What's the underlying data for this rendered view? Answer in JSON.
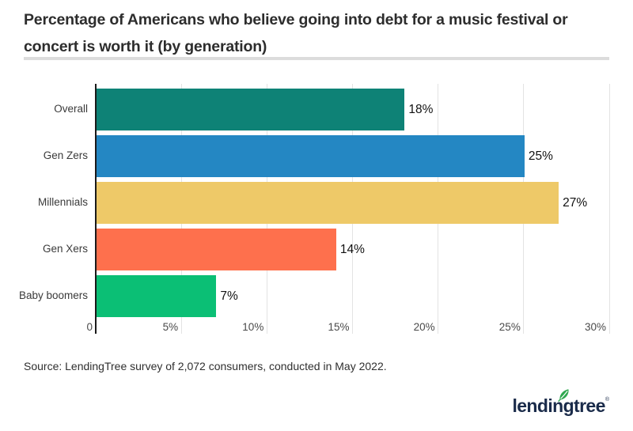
{
  "title": "Percentage of Americans who believe going into debt for a music festival or concert is worth it (by generation)",
  "chart_data": {
    "type": "bar",
    "orientation": "horizontal",
    "title": "Percentage of Americans who believe going into debt for a music festival or concert is worth it (by generation)",
    "categories": [
      "Overall",
      "Gen Zers",
      "Millennials",
      "Gen Xers",
      "Baby boomers"
    ],
    "values": [
      18,
      25,
      27,
      14,
      7
    ],
    "value_labels": [
      "18%",
      "25%",
      "27%",
      "14%",
      "7%"
    ],
    "bar_colors": [
      "#0e8276",
      "#2487c3",
      "#eec968",
      "#fe704d",
      "#0bbf75"
    ],
    "xlabel": "",
    "ylabel": "",
    "xlim": [
      0,
      30
    ],
    "x_ticks": [
      0,
      5,
      10,
      15,
      20,
      25,
      30
    ],
    "x_tick_labels": [
      "0",
      "5%",
      "10%",
      "15%",
      "20%",
      "25%",
      "30%"
    ],
    "grid": true,
    "legend": false
  },
  "source_note": "Source: LendingTree survey of 2,072 consumers, conducted in May 2022.",
  "logo": {
    "text": "lendingtree",
    "registered_mark": "®",
    "text_color": "#1a2b4a",
    "leaf_color": "#2fa84f"
  },
  "colors": {
    "background": "#ffffff",
    "title_text": "#2d2d2d",
    "divider": "#dcdcdc",
    "gridline": "#e3e3e3",
    "axis": "#1a1a1a",
    "tick_text": "#4a4a4a",
    "category_text": "#3a3a3a",
    "value_text": "#111111"
  }
}
